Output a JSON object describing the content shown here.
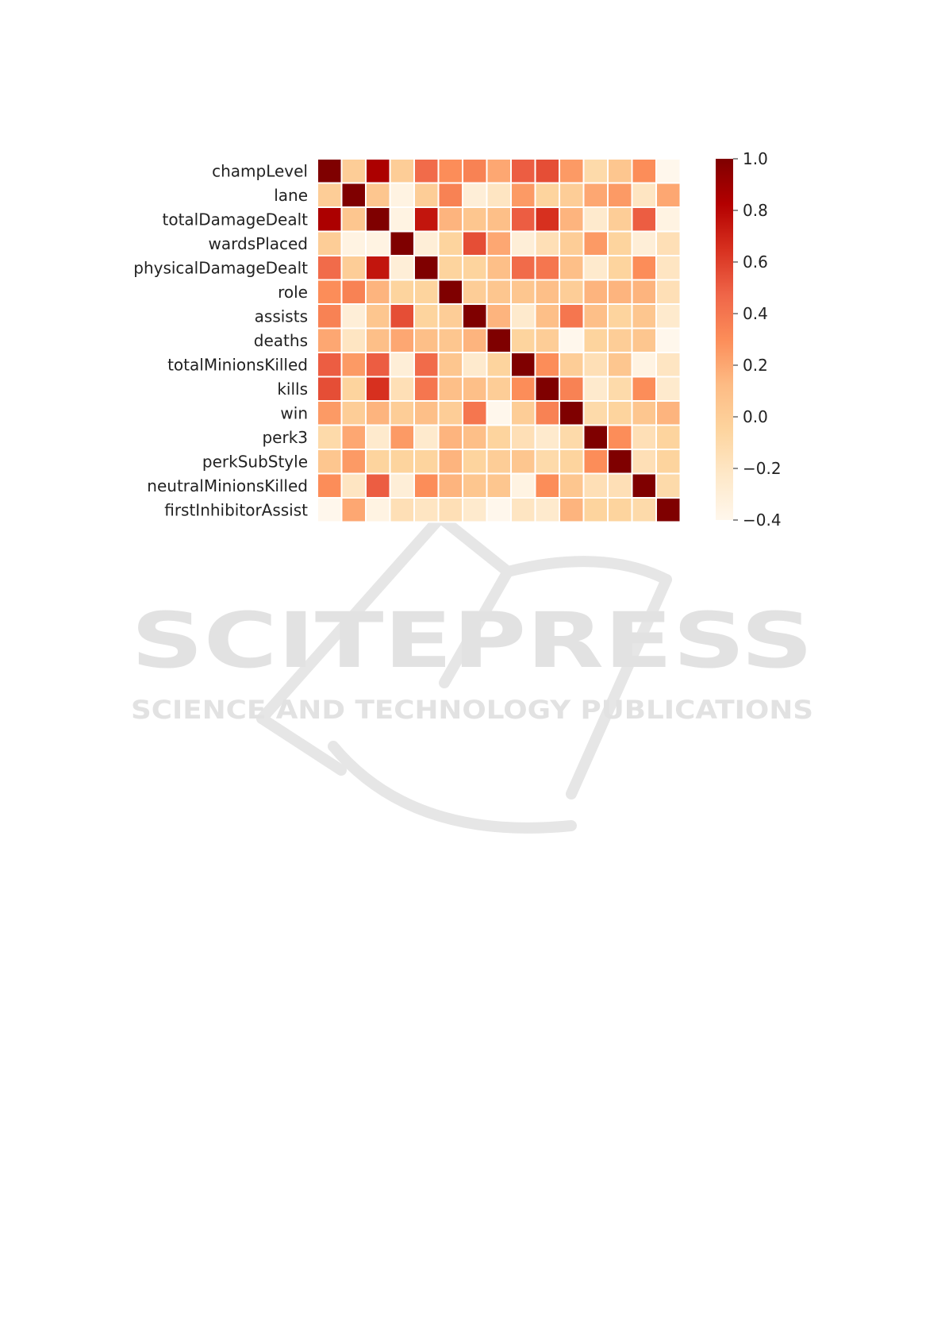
{
  "watermark": {
    "name": "SCITEPRESS",
    "tagline": "SCIENCE AND TECHNOLOGY PUBLICATIONS"
  },
  "chart_data": {
    "type": "heatmap",
    "title": "",
    "xlabel": "",
    "ylabel": "",
    "row_labels": [
      "champLevel",
      "lane",
      "totalDamageDealt",
      "wardsPlaced",
      "physicalDamageDealt",
      "role",
      "assists",
      "deaths",
      "totalMinionsKilled",
      "kills",
      "win",
      "perk3",
      "perkSubStyle",
      "neutralMinionsKilled",
      "firstInhibitorAssist"
    ],
    "column_labels_visible": false,
    "colorscale": "OrRd",
    "vmin": -0.4,
    "vmax": 1.0,
    "colorbar_ticks": [
      "1.0",
      "0.8",
      "0.6",
      "0.4",
      "0.2",
      "0.0",
      "−0.2",
      "−0.4"
    ],
    "matrix": [
      [
        1.0,
        0.0,
        0.85,
        0.0,
        0.45,
        0.3,
        0.35,
        0.2,
        0.5,
        0.55,
        0.25,
        -0.1,
        0.05,
        0.3,
        -0.4
      ],
      [
        0.0,
        1.0,
        0.05,
        -0.35,
        0.0,
        0.35,
        -0.3,
        -0.2,
        0.25,
        -0.05,
        0.0,
        0.2,
        0.25,
        -0.2,
        0.2
      ],
      [
        0.85,
        0.05,
        1.0,
        -0.35,
        0.75,
        0.15,
        0.05,
        0.1,
        0.5,
        0.65,
        0.15,
        -0.25,
        0.0,
        0.5,
        -0.35
      ],
      [
        0.0,
        -0.35,
        -0.35,
        1.0,
        -0.3,
        -0.05,
        0.55,
        0.2,
        -0.3,
        -0.15,
        0.0,
        0.25,
        -0.05,
        -0.3,
        -0.15
      ],
      [
        0.45,
        0.0,
        0.75,
        -0.3,
        1.0,
        -0.05,
        -0.05,
        0.1,
        0.45,
        0.4,
        0.1,
        -0.25,
        -0.05,
        0.3,
        -0.2
      ],
      [
        0.3,
        0.35,
        0.15,
        -0.05,
        -0.05,
        1.0,
        0.0,
        0.05,
        0.05,
        0.1,
        0.0,
        0.15,
        0.15,
        0.15,
        -0.15
      ],
      [
        0.35,
        -0.3,
        0.05,
        0.55,
        -0.05,
        0.0,
        1.0,
        0.15,
        -0.25,
        0.1,
        0.4,
        0.1,
        -0.05,
        0.05,
        -0.25
      ],
      [
        0.2,
        -0.2,
        0.1,
        0.2,
        0.1,
        0.05,
        0.15,
        1.0,
        -0.05,
        0.0,
        -0.4,
        -0.05,
        0.0,
        0.05,
        -0.4
      ],
      [
        0.5,
        0.25,
        0.5,
        -0.3,
        0.45,
        0.05,
        -0.25,
        -0.05,
        1.0,
        0.3,
        0.0,
        -0.15,
        0.05,
        -0.35,
        -0.2
      ],
      [
        0.55,
        -0.05,
        0.65,
        -0.15,
        0.4,
        0.1,
        0.1,
        0.0,
        0.3,
        1.0,
        0.35,
        -0.25,
        -0.1,
        0.3,
        -0.25
      ],
      [
        0.25,
        0.0,
        0.15,
        0.0,
        0.1,
        0.0,
        0.4,
        -0.4,
        0.0,
        0.35,
        1.0,
        -0.1,
        -0.05,
        0.05,
        0.15
      ],
      [
        -0.1,
        0.2,
        -0.25,
        0.25,
        -0.25,
        0.15,
        0.1,
        -0.05,
        -0.15,
        -0.25,
        -0.1,
        1.0,
        0.3,
        -0.15,
        -0.05
      ],
      [
        0.05,
        0.25,
        -0.05,
        -0.05,
        -0.05,
        0.15,
        -0.05,
        0.0,
        0.05,
        -0.1,
        -0.05,
        0.3,
        1.0,
        -0.15,
        -0.05
      ],
      [
        0.3,
        -0.2,
        0.5,
        -0.3,
        0.3,
        0.15,
        0.05,
        0.05,
        -0.35,
        0.3,
        0.05,
        -0.15,
        -0.15,
        1.0,
        -0.1
      ],
      [
        -0.4,
        0.2,
        -0.35,
        -0.15,
        -0.2,
        -0.15,
        -0.25,
        -0.4,
        -0.2,
        -0.25,
        0.15,
        -0.05,
        -0.05,
        -0.1,
        1.0
      ]
    ]
  }
}
